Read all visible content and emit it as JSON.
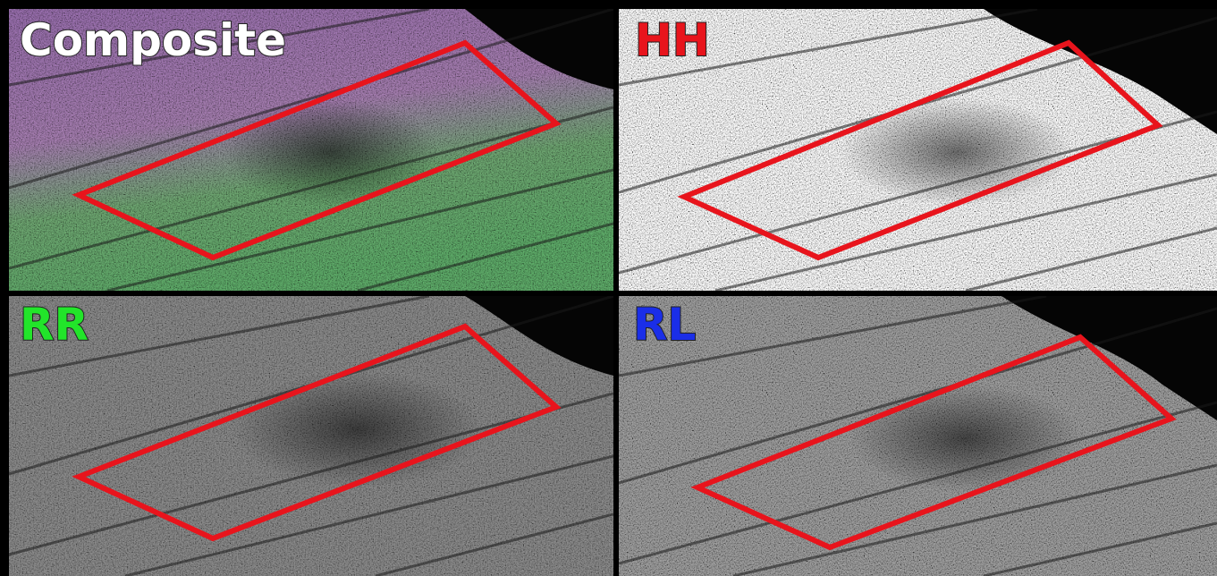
{
  "panels": [
    {
      "label": "Composite"
    },
    {
      "label": "HH"
    },
    {
      "label": "RR"
    },
    {
      "label": "RL"
    }
  ]
}
